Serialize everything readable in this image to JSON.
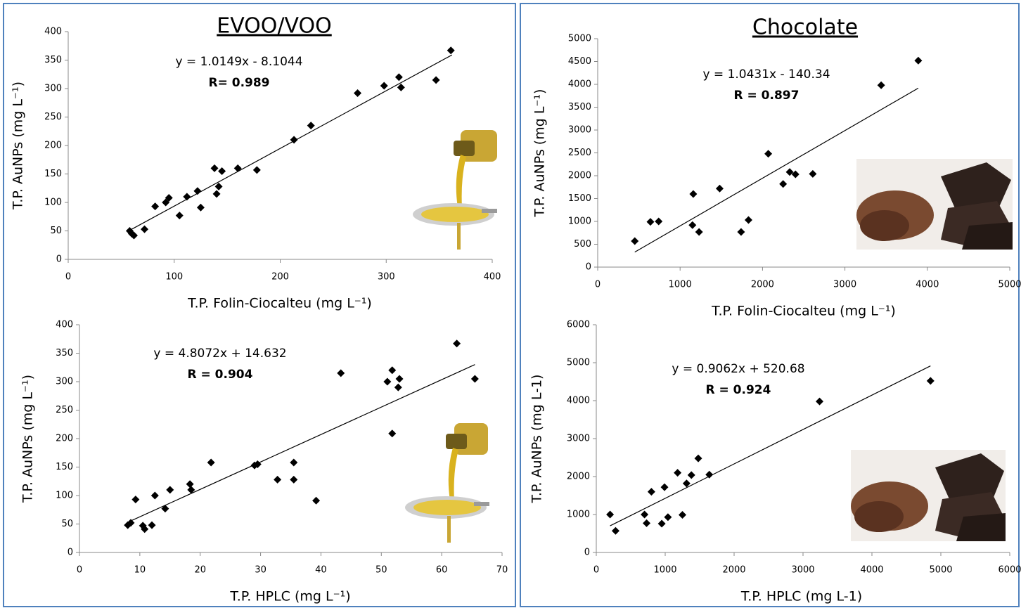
{
  "chart_data": [
    {
      "type": "scatter",
      "title": "EVOO/VOO",
      "xlabel": "T.P. Folin-Ciocalteu (mg L⁻¹)",
      "ylabel": "T.P. AuNPs (mg L⁻¹)",
      "annotations": [
        "y = 1.0149x - 8.1044",
        "R= 0.989"
      ],
      "x": [
        58,
        62,
        60,
        72,
        82,
        92,
        95,
        105,
        112,
        122,
        125,
        138,
        140,
        142,
        145,
        160,
        178,
        213,
        229,
        273,
        298,
        312,
        314,
        347,
        361
      ],
      "values": [
        50,
        42,
        45,
        53,
        93,
        100,
        108,
        77,
        110,
        120,
        91,
        160,
        115,
        128,
        155,
        160,
        157,
        210,
        235,
        292,
        305,
        320,
        302,
        315,
        367
      ],
      "color": "#000000",
      "trendline": {
        "x": [
          58,
          362
        ],
        "values": [
          51,
          359
        ]
      },
      "xlim": [
        0,
        400
      ],
      "xticks": [
        0,
        100,
        200,
        300,
        400
      ],
      "ylim": [
        0,
        400
      ],
      "yticks": [
        0,
        50,
        100,
        150,
        200,
        250,
        300,
        350,
        400
      ]
    },
    {
      "type": "scatter",
      "xlabel": "T.P. HPLC (mg L⁻¹)",
      "ylabel": "T.P. AuNPs (mg L⁻¹)",
      "annotations": [
        "y = 4.8072x + 14.632",
        "R = 0.904"
      ],
      "x": [
        8,
        8.5,
        9.3,
        10.5,
        10.8,
        12,
        12.5,
        14.2,
        15,
        18.3,
        18.5,
        21.8,
        29,
        29.5,
        32.8,
        35.5,
        35.5,
        39.2,
        43.3,
        51,
        51.8,
        51.8,
        52.8,
        53,
        62.5,
        65.5
      ],
      "values": [
        48,
        52,
        93,
        47,
        41,
        48,
        100,
        77,
        110,
        120,
        110,
        158,
        153,
        155,
        128,
        158,
        128,
        91,
        315,
        300,
        320,
        209,
        290,
        305,
        367,
        305
      ],
      "color": "#000000",
      "trendline": {
        "x": [
          8,
          65.5
        ],
        "values": [
          53,
          330
        ]
      },
      "xlim": [
        0,
        70
      ],
      "xticks": [
        0,
        10,
        20,
        30,
        40,
        50,
        60,
        70
      ],
      "ylim": [
        0,
        400
      ],
      "yticks": [
        0,
        50,
        100,
        150,
        200,
        250,
        300,
        350,
        400
      ]
    },
    {
      "type": "scatter",
      "title": "Chocolate",
      "xlabel": "T.P.  Folin-Ciocalteu (mg L⁻¹)",
      "ylabel": "T.P. AuNPs (mg L⁻¹)",
      "annotations": [
        "y = 1.0431x - 140.34",
        "R  = 0.897"
      ],
      "x": [
        450,
        640,
        740,
        1150,
        1160,
        1230,
        1480,
        1740,
        1830,
        2070,
        2250,
        2330,
        2400,
        2610,
        3440,
        3890
      ],
      "values": [
        570,
        990,
        1000,
        920,
        1600,
        770,
        1720,
        770,
        1030,
        2480,
        1820,
        2080,
        2030,
        2040,
        3980,
        4520
      ],
      "color": "#000000",
      "trendline": {
        "x": [
          450,
          3890
        ],
        "values": [
          329,
          3917
        ]
      },
      "xlim": [
        0,
        5000
      ],
      "xticks": [
        0,
        1000,
        2000,
        3000,
        4000,
        5000
      ],
      "ylim": [
        0,
        5000
      ],
      "yticks": [
        0,
        500,
        1000,
        1500,
        2000,
        2500,
        3000,
        3500,
        4000,
        4500,
        5000
      ]
    },
    {
      "type": "scatter",
      "xlabel": "T.P.  HPLC (mg L-1)",
      "ylabel": "T.P. AuNPs (mg L-1)",
      "annotations": [
        "y = 0.9062x + 520.68",
        "R = 0.924"
      ],
      "x": [
        200,
        280,
        700,
        730,
        800,
        950,
        990,
        1040,
        1180,
        1250,
        1310,
        1380,
        1480,
        1640,
        3240,
        4850
      ],
      "values": [
        1000,
        570,
        1000,
        770,
        1600,
        760,
        1720,
        930,
        2100,
        990,
        1820,
        2040,
        2480,
        2050,
        3980,
        4520
      ],
      "color": "#000000",
      "trendline": {
        "x": [
          200,
          4850
        ],
        "values": [
          702,
          4916
        ]
      },
      "xlim": [
        0,
        6000
      ],
      "xticks": [
        0,
        1000,
        2000,
        3000,
        4000,
        5000,
        6000
      ],
      "ylim": [
        0,
        6000
      ],
      "yticks": [
        0,
        1000,
        2000,
        3000,
        4000,
        5000,
        6000
      ]
    }
  ]
}
